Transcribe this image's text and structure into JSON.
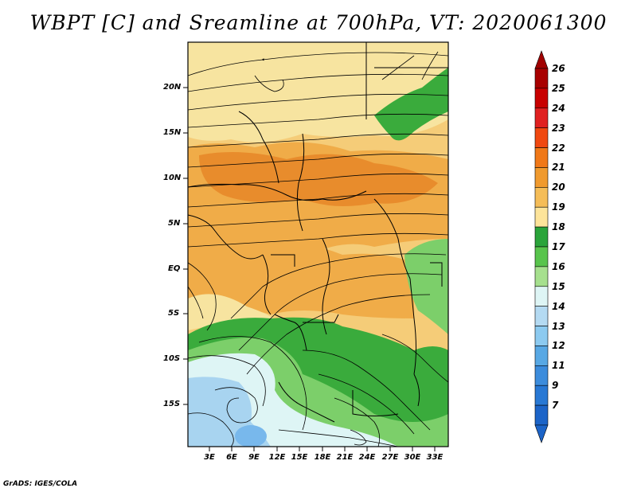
{
  "title": "WBPT [C] and Sreamline at 700hPa, VT: 2020061300",
  "credit": "GrADS: IGES/COLA",
  "map": {
    "lat_labels": [
      "20N",
      "15N",
      "10N",
      "5N",
      "EQ",
      "5S",
      "10S",
      "15S"
    ],
    "lon_labels": [
      "3E",
      "6E",
      "9E",
      "12E",
      "15E",
      "18E",
      "21E",
      "24E",
      "27E",
      "30E",
      "33E"
    ]
  },
  "colorbar": {
    "labels": [
      "26",
      "25",
      "24",
      "23",
      "22",
      "21",
      "20",
      "19",
      "18",
      "17",
      "16",
      "15",
      "14",
      "13",
      "12",
      "11",
      "9",
      "7"
    ],
    "colors": [
      "#a80000",
      "#c80000",
      "#e02020",
      "#f04810",
      "#f07818",
      "#f09a2e",
      "#f5bd58",
      "#fde49a",
      "#2aa43a",
      "#58c44c",
      "#a6e08e",
      "#def5f5",
      "#b4daf2",
      "#8ccaf0",
      "#58a8e4",
      "#3c8cdc",
      "#2878d4",
      "#1c64c8"
    ]
  },
  "field_colors": {
    "pale_yellow": "#f7e4a0",
    "light_orange": "#f5cc78",
    "orange": "#f0ac48",
    "deep_orange": "#e88c2c",
    "green": "#3aab3c",
    "light_green": "#7ccf6a",
    "pale_green": "#b8e6a4",
    "pale_cyan": "#def5f5",
    "light_blue": "#a8d4f0"
  }
}
